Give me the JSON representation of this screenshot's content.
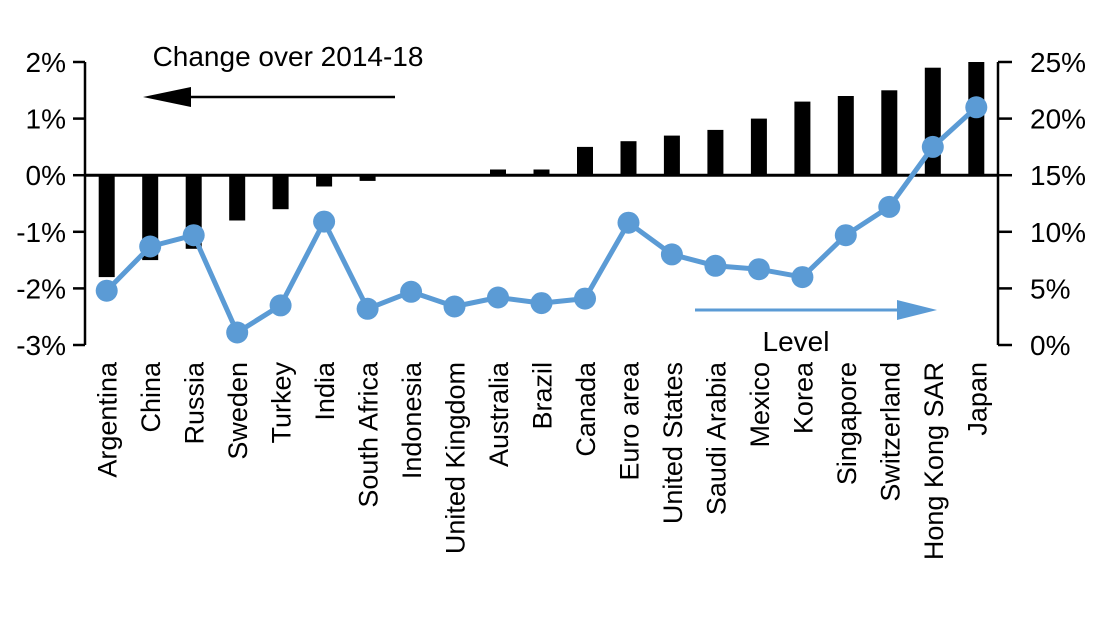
{
  "chart_data": {
    "type": "bar+line dual-axis combo",
    "title": "Change over 2014-18",
    "line_label": "Level",
    "categories": [
      "Argentina",
      "China",
      "Russia",
      "Sweden",
      "Turkey",
      "India",
      "South Africa",
      "Indonesia",
      "United Kingdom",
      "Australia",
      "Brazil",
      "Canada",
      "Euro area",
      "United States",
      "Saudi Arabia",
      "Mexico",
      "Korea",
      "Singapore",
      "Switzerland",
      "Hong Kong SAR",
      "Japan"
    ],
    "series": [
      {
        "name": "Change over 2014-18",
        "type": "bar",
        "axis": "left",
        "unit": "%",
        "values": [
          -1.8,
          -1.5,
          -1.3,
          -0.8,
          -0.6,
          -0.2,
          -0.1,
          0,
          0,
          0.1,
          0.1,
          0.5,
          0.6,
          0.7,
          0.8,
          1.0,
          1.3,
          1.4,
          1.5,
          1.9,
          2.0
        ]
      },
      {
        "name": "Level",
        "type": "line",
        "axis": "right",
        "unit": "%",
        "values": [
          4.8,
          8.7,
          9.7,
          1.1,
          3.5,
          10.9,
          3.2,
          4.7,
          3.4,
          4.2,
          3.7,
          4.1,
          10.8,
          8.0,
          7.0,
          6.7,
          6.0,
          9.7,
          12.2,
          17.5,
          21.0
        ]
      }
    ],
    "left_axis": {
      "min": -3,
      "max": 2,
      "tick_values": [
        2,
        1,
        0,
        -1,
        -2,
        -3
      ],
      "tick_labels": [
        "2%",
        "1%",
        "0%",
        "-1%",
        "-2%",
        "-3%"
      ]
    },
    "right_axis": {
      "min": 0,
      "max": 25,
      "tick_values": [
        25,
        20,
        15,
        10,
        5,
        0
      ],
      "tick_labels": [
        "25%",
        "20%",
        "15%",
        "10%",
        "5%",
        "0%"
      ]
    },
    "grid": false,
    "legend_position": "in-plot arrow annotations",
    "colors": {
      "bar": "#000000",
      "line": "#5b9bd5",
      "text": "#000000",
      "background": "#ffffff"
    }
  }
}
